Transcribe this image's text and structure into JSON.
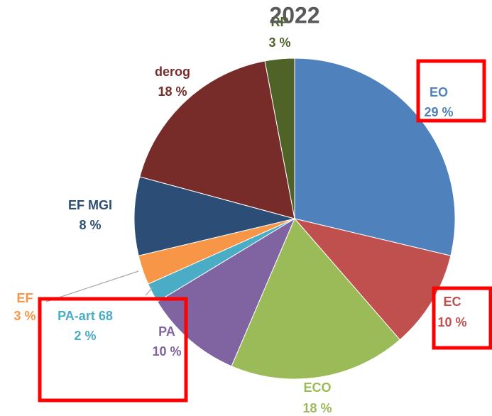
{
  "chart_data": {
    "type": "pie",
    "title": "2022",
    "categories": [
      "EO",
      "EC",
      "ECO",
      "PA",
      "PA-art 68",
      "EF",
      "EF MGI",
      "derog",
      "RP"
    ],
    "values": [
      29,
      10,
      18,
      10,
      2,
      3,
      8,
      18,
      3
    ],
    "value_labels": [
      "29 %",
      "10 %",
      "18 %",
      "10 %",
      "2 %",
      "3 %",
      "8 %",
      "18 %",
      "3 %"
    ],
    "colors": [
      "#4f81bd",
      "#c0504d",
      "#9bbb59",
      "#8064a2",
      "#4bacc6",
      "#f79646",
      "#2c4d75",
      "#772c2a",
      "#4f6228"
    ]
  }
}
